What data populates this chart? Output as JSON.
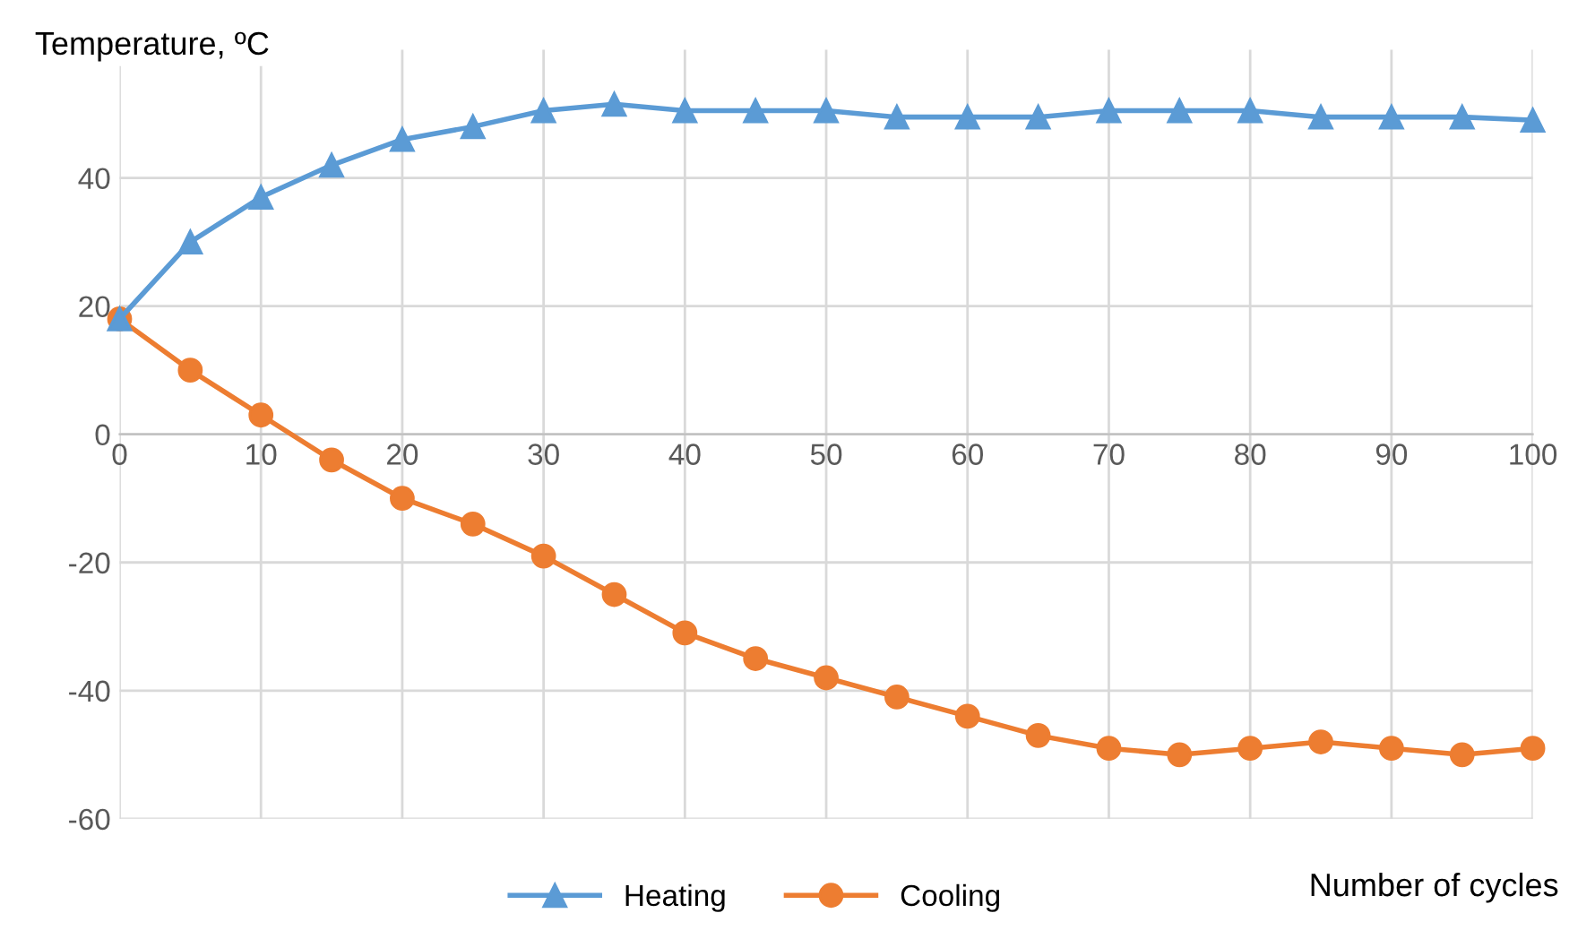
{
  "chart_data": {
    "type": "line",
    "xlabel": "Number of cycles",
    "ylabel": "Temperature, ºC",
    "x": [
      0,
      5,
      10,
      15,
      20,
      25,
      30,
      35,
      40,
      45,
      50,
      55,
      60,
      65,
      70,
      75,
      80,
      85,
      90,
      95,
      100
    ],
    "series": [
      {
        "name": "Heating",
        "color": "#5b9bd5",
        "marker": "triangle",
        "values": [
          18,
          30,
          37,
          42,
          46,
          48,
          50.5,
          51.5,
          50.5,
          50.5,
          50.5,
          49.5,
          49.5,
          49.5,
          50.5,
          50.5,
          50.5,
          49.5,
          49.5,
          49.5,
          49
        ]
      },
      {
        "name": "Cooling",
        "color": "#ed7d31",
        "marker": "circle",
        "values": [
          18,
          10,
          3,
          -4,
          -10,
          -14,
          -19,
          -25,
          -31,
          -35,
          -38,
          -41,
          -44,
          -47,
          -49,
          -50,
          -49,
          -48,
          -49,
          -50,
          -49
        ]
      }
    ],
    "xlim": [
      0,
      100
    ],
    "xticks": [
      0,
      10,
      20,
      30,
      40,
      50,
      60,
      70,
      80,
      90,
      100
    ],
    "ylim": [
      -60,
      60
    ],
    "yticks": [
      -60,
      -40,
      -20,
      0,
      20,
      40
    ],
    "grid": true,
    "legend": "bottom",
    "line_style": "solid"
  }
}
